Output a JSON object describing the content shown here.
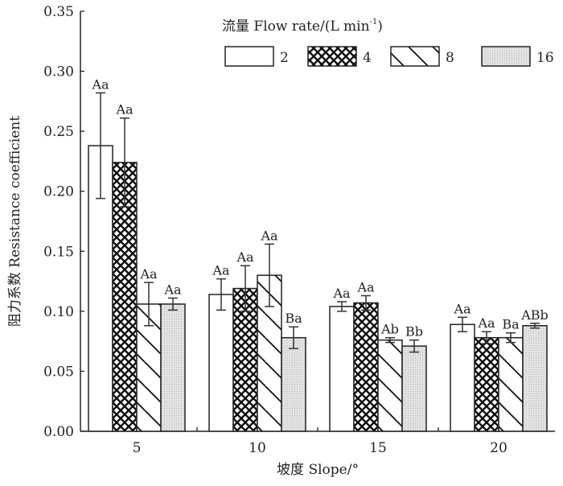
{
  "chart_data": {
    "type": "bar",
    "xlabel": "坡度 Slope/°",
    "ylabel": "阻力系数 Resistance coefficient",
    "ylim": [
      0,
      0.35
    ],
    "yticks": [
      "0.00",
      "0.05",
      "0.10",
      "0.15",
      "0.20",
      "0.25",
      "0.30",
      "0.35"
    ],
    "categories": [
      "5",
      "10",
      "15",
      "20"
    ],
    "legend_title": "流量 Flow rate/(L min",
    "legend_title_sup": "-1",
    "legend_title_end": ")",
    "legend_placement": "top-right",
    "series": [
      {
        "name": "2",
        "pattern": "white",
        "values": [
          0.238,
          0.114,
          0.104,
          0.089
        ],
        "errors": [
          0.044,
          0.013,
          0.004,
          0.006
        ],
        "labels": [
          "Aa",
          "Aa",
          "Aa",
          "Aa"
        ]
      },
      {
        "name": "4",
        "pattern": "crosshatch",
        "values": [
          0.224,
          0.119,
          0.107,
          0.078
        ],
        "errors": [
          0.037,
          0.019,
          0.006,
          0.005
        ],
        "labels": [
          "Aa",
          "Aa",
          "Aa",
          "Aa"
        ]
      },
      {
        "name": "8",
        "pattern": "diagonal",
        "values": [
          0.106,
          0.13,
          0.076,
          0.078
        ],
        "errors": [
          0.018,
          0.026,
          0.002,
          0.004
        ],
        "labels": [
          "Aa",
          "Aa",
          "Ab",
          "Ba"
        ]
      },
      {
        "name": "16",
        "pattern": "dotted-gray",
        "values": [
          0.106,
          0.078,
          0.071,
          0.088
        ],
        "errors": [
          0.005,
          0.009,
          0.005,
          0.002
        ],
        "labels": [
          "Aa",
          "Ba",
          "Bb",
          "ABb"
        ]
      }
    ]
  }
}
